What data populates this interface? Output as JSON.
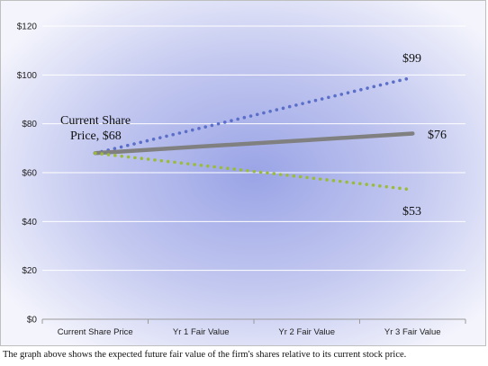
{
  "chart_data": {
    "type": "line",
    "categories": [
      "Current Share Price",
      "Yr 1 Fair Value",
      "Yr 2 Fair Value",
      "Yr 3 Fair Value"
    ],
    "ylim": [
      0,
      120
    ],
    "yticks": [
      0,
      20,
      40,
      60,
      80,
      100,
      120
    ],
    "ytick_labels": [
      "$0",
      "$20",
      "$40",
      "$60",
      "$80",
      "$100",
      "$120"
    ],
    "grid": true,
    "series": [
      {
        "key": "high",
        "style": "dotted",
        "color": "#5b6ec8",
        "values": [
          68,
          78.3,
          88.7,
          99
        ]
      },
      {
        "key": "base",
        "style": "solid",
        "color": "#808080",
        "values": [
          68,
          70.7,
          73.3,
          76
        ]
      },
      {
        "key": "low",
        "style": "dotted",
        "color": "#9bbb3c",
        "values": [
          68,
          63,
          58,
          53
        ]
      }
    ],
    "annotations": {
      "start_line1": "Current Share",
      "start_line2": "Price, $68",
      "high_end": "$99",
      "base_end": "$76",
      "low_end": "$53"
    }
  },
  "caption": "The graph above shows the expected future fair value of the firm's shares relative to its current stock price."
}
